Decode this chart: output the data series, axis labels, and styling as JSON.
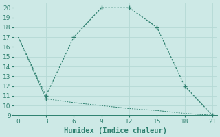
{
  "xlabel": "Humidex (Indice chaleur)",
  "line1_x": [
    0,
    3,
    6,
    9,
    12,
    15,
    18,
    21
  ],
  "line1_y": [
    17,
    11,
    17,
    20,
    20,
    18,
    12,
    9
  ],
  "line2_x": [
    0,
    3,
    6,
    9,
    12,
    15,
    18,
    21
  ],
  "line2_y": [
    17.0,
    10.7,
    10.3,
    10.0,
    9.7,
    9.5,
    9.2,
    9.0
  ],
  "line_color": "#2d7f6e",
  "bg_color": "#cde9e6",
  "grid_color": "#b5d9d5",
  "xlim": [
    -0.5,
    21.5
  ],
  "ylim": [
    9,
    20.5
  ],
  "xticks": [
    0,
    3,
    6,
    9,
    12,
    15,
    18,
    21
  ],
  "yticks": [
    9,
    10,
    11,
    12,
    13,
    14,
    15,
    16,
    17,
    18,
    19,
    20
  ],
  "tick_fontsize": 6.5,
  "xlabel_fontsize": 7.5,
  "marker_indices1": [
    1,
    2,
    3,
    4,
    5,
    6,
    7
  ],
  "marker_indices2": [
    1
  ]
}
